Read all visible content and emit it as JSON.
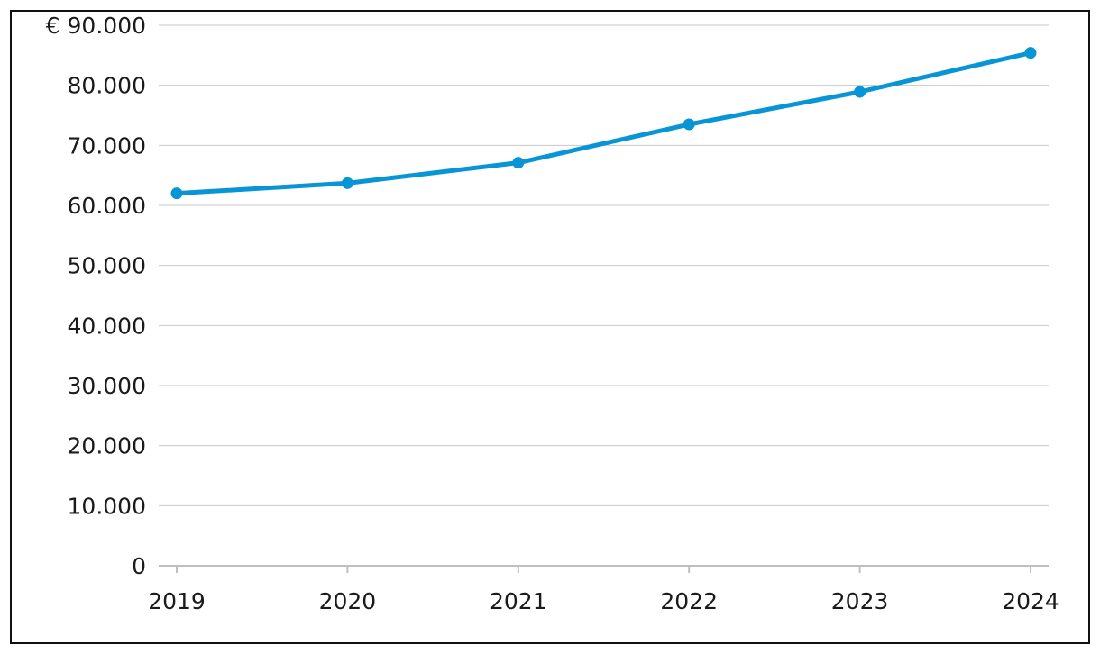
{
  "chart_data": {
    "type": "line",
    "title": "",
    "xlabel": "",
    "ylabel": "",
    "x": [
      "2019",
      "2020",
      "2021",
      "2022",
      "2023",
      "2024"
    ],
    "series": [
      {
        "values": [
          62000,
          63700,
          67100,
          73500,
          78900,
          85400
        ],
        "color": "#0895d6"
      }
    ],
    "ylim": [
      0,
      90000
    ],
    "y_ticks": [
      0,
      10000,
      20000,
      30000,
      40000,
      50000,
      60000,
      70000,
      80000,
      90000
    ],
    "y_tick_labels": [
      "0",
      "10.000",
      "20.000",
      "30.000",
      "40.000",
      "50.000",
      "60.000",
      "70.000",
      "80.000",
      "€ 90.000"
    ],
    "grid": true,
    "gridline_color": "#c8c8c8",
    "axis_color": "#bfbfbf",
    "legend": "none"
  }
}
